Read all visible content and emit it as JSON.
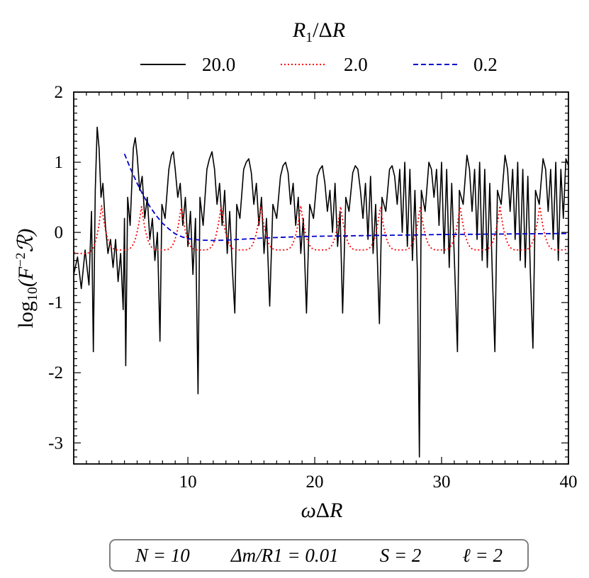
{
  "chart_data": {
    "type": "line",
    "title": "",
    "xlabel": "ωΔR",
    "ylabel": "log10(F⁻²ℛ)",
    "ylabel_parts": {
      "fn": "log",
      "sub": "10",
      "body": "(F",
      "sup": "−2",
      "end": "ℛ)"
    },
    "xlim": [
      1,
      40
    ],
    "ylim": [
      -3.3,
      2
    ],
    "xticks": [
      10,
      20,
      30,
      40
    ],
    "xtick_labels": [
      "10",
      "20",
      "30",
      "40"
    ],
    "yticks": [
      2,
      1,
      0,
      -1,
      -2,
      -3
    ],
    "ytick_labels": [
      "2",
      "1",
      "0",
      "-1",
      "-2",
      "-3"
    ],
    "legend": {
      "title": "R1/ΔR",
      "placement": "top-center",
      "entries": [
        "20.0",
        "2.0",
        "0.2"
      ]
    },
    "series": [
      {
        "name": "20.0",
        "color": "#000000",
        "style": "solid",
        "description": "rapidly oscillating, peaks near 1.0-1.5, deep troughs",
        "points": [
          [
            1.0,
            -0.6
          ],
          [
            1.3,
            -0.35
          ],
          [
            1.6,
            -0.8
          ],
          [
            1.9,
            -0.25
          ],
          [
            2.2,
            -0.75
          ],
          [
            2.4,
            0.3
          ],
          [
            2.55,
            -1.7
          ],
          [
            2.7,
            0.6
          ],
          [
            2.85,
            1.5
          ],
          [
            3.0,
            1.2
          ],
          [
            3.15,
            0.5
          ],
          [
            3.3,
            0.7
          ],
          [
            3.5,
            0.1
          ],
          [
            3.7,
            -0.3
          ],
          [
            3.9,
            -0.1
          ],
          [
            4.1,
            -0.5
          ],
          [
            4.3,
            -0.1
          ],
          [
            4.5,
            -0.7
          ],
          [
            4.7,
            -0.3
          ],
          [
            4.9,
            -1.1
          ],
          [
            5.0,
            0.2
          ],
          [
            5.1,
            -1.9
          ],
          [
            5.25,
            0.5
          ],
          [
            5.45,
            0.1
          ],
          [
            5.7,
            1.2
          ],
          [
            5.85,
            1.35
          ],
          [
            6.0,
            1.1
          ],
          [
            6.2,
            0.6
          ],
          [
            6.4,
            0.8
          ],
          [
            6.6,
            0.2
          ],
          [
            6.8,
            0.5
          ],
          [
            7.0,
            -0.1
          ],
          [
            7.2,
            0.2
          ],
          [
            7.4,
            -0.4
          ],
          [
            7.6,
            0.0
          ],
          [
            7.8,
            -1.55
          ],
          [
            7.95,
            0.4
          ],
          [
            8.2,
            0.2
          ],
          [
            8.5,
            0.9
          ],
          [
            8.7,
            1.1
          ],
          [
            8.85,
            1.15
          ],
          [
            9.0,
            0.9
          ],
          [
            9.2,
            0.5
          ],
          [
            9.4,
            0.7
          ],
          [
            9.6,
            0.1
          ],
          [
            9.8,
            0.5
          ],
          [
            10.0,
            -0.2
          ],
          [
            10.2,
            0.3
          ],
          [
            10.4,
            -0.6
          ],
          [
            10.6,
            0.2
          ],
          [
            10.8,
            -2.3
          ],
          [
            10.95,
            0.5
          ],
          [
            11.2,
            0.1
          ],
          [
            11.5,
            0.9
          ],
          [
            11.7,
            1.05
          ],
          [
            11.9,
            1.15
          ],
          [
            12.1,
            0.9
          ],
          [
            12.3,
            0.4
          ],
          [
            12.5,
            0.7
          ],
          [
            12.7,
            0.1
          ],
          [
            12.9,
            0.6
          ],
          [
            13.1,
            -0.3
          ],
          [
            13.3,
            0.3
          ],
          [
            13.5,
            -0.5
          ],
          [
            13.7,
            -1.15
          ],
          [
            13.85,
            0.4
          ],
          [
            14.1,
            0.2
          ],
          [
            14.4,
            0.9
          ],
          [
            14.6,
            1.0
          ],
          [
            14.8,
            1.05
          ],
          [
            15.0,
            0.85
          ],
          [
            15.2,
            0.4
          ],
          [
            15.4,
            0.7
          ],
          [
            15.6,
            0.1
          ],
          [
            15.8,
            0.5
          ],
          [
            16.0,
            -0.3
          ],
          [
            16.2,
            0.2
          ],
          [
            16.45,
            -1.05
          ],
          [
            16.7,
            0.4
          ],
          [
            17.0,
            0.2
          ],
          [
            17.3,
            0.8
          ],
          [
            17.5,
            0.95
          ],
          [
            17.7,
            1.0
          ],
          [
            17.9,
            0.85
          ],
          [
            18.1,
            0.4
          ],
          [
            18.3,
            0.7
          ],
          [
            18.5,
            0.1
          ],
          [
            18.7,
            0.5
          ],
          [
            18.9,
            -0.3
          ],
          [
            19.1,
            0.2
          ],
          [
            19.35,
            -1.15
          ],
          [
            19.6,
            0.4
          ],
          [
            19.9,
            0.2
          ],
          [
            20.2,
            0.8
          ],
          [
            20.4,
            0.9
          ],
          [
            20.6,
            0.95
          ],
          [
            20.8,
            0.7
          ],
          [
            21.0,
            0.3
          ],
          [
            21.2,
            0.6
          ],
          [
            21.4,
            0.0
          ],
          [
            21.6,
            0.7
          ],
          [
            21.8,
            -0.2
          ],
          [
            22.0,
            0.3
          ],
          [
            22.2,
            -1.15
          ],
          [
            22.45,
            0.5
          ],
          [
            22.7,
            0.3
          ],
          [
            23.0,
            0.85
          ],
          [
            23.2,
            0.95
          ],
          [
            23.4,
            0.9
          ],
          [
            23.6,
            0.6
          ],
          [
            23.8,
            0.2
          ],
          [
            24.0,
            0.7
          ],
          [
            24.2,
            -0.1
          ],
          [
            24.4,
            0.8
          ],
          [
            24.6,
            -0.3
          ],
          [
            24.8,
            0.4
          ],
          [
            25.1,
            -1.3
          ],
          [
            25.3,
            0.5
          ],
          [
            25.6,
            0.3
          ],
          [
            25.9,
            0.9
          ],
          [
            26.1,
            0.95
          ],
          [
            26.3,
            0.8
          ],
          [
            26.5,
            0.4
          ],
          [
            26.7,
            0.9
          ],
          [
            26.9,
            0.0
          ],
          [
            27.1,
            1.0
          ],
          [
            27.3,
            -0.2
          ],
          [
            27.5,
            0.9
          ],
          [
            27.7,
            -0.4
          ],
          [
            27.9,
            0.6
          ],
          [
            28.1,
            -0.6
          ],
          [
            28.25,
            -3.2
          ],
          [
            28.4,
            0.6
          ],
          [
            28.7,
            0.3
          ],
          [
            29.0,
            1.0
          ],
          [
            29.2,
            0.9
          ],
          [
            29.4,
            0.5
          ],
          [
            29.6,
            0.9
          ],
          [
            29.8,
            0.1
          ],
          [
            30.0,
            1.0
          ],
          [
            30.2,
            -0.3
          ],
          [
            30.4,
            0.9
          ],
          [
            30.6,
            -0.5
          ],
          [
            30.8,
            0.7
          ],
          [
            31.05,
            -0.6
          ],
          [
            31.25,
            -1.7
          ],
          [
            31.4,
            0.6
          ],
          [
            31.7,
            0.4
          ],
          [
            32.0,
            1.1
          ],
          [
            32.2,
            0.9
          ],
          [
            32.4,
            0.3
          ],
          [
            32.6,
            0.9
          ],
          [
            32.8,
            -0.1
          ],
          [
            33.0,
            1.0
          ],
          [
            33.2,
            -0.4
          ],
          [
            33.4,
            0.9
          ],
          [
            33.6,
            -0.5
          ],
          [
            33.8,
            0.7
          ],
          [
            34.0,
            -0.6
          ],
          [
            34.2,
            -1.7
          ],
          [
            34.4,
            0.6
          ],
          [
            34.7,
            0.4
          ],
          [
            35.0,
            1.1
          ],
          [
            35.2,
            0.9
          ],
          [
            35.4,
            0.3
          ],
          [
            35.6,
            0.9
          ],
          [
            35.8,
            -0.1
          ],
          [
            36.0,
            1.0
          ],
          [
            36.2,
            -0.4
          ],
          [
            36.4,
            0.9
          ],
          [
            36.6,
            -0.5
          ],
          [
            36.8,
            0.8
          ],
          [
            37.0,
            -0.6
          ],
          [
            37.2,
            -1.65
          ],
          [
            37.4,
            0.6
          ],
          [
            37.7,
            0.4
          ],
          [
            38.0,
            1.05
          ],
          [
            38.2,
            0.9
          ],
          [
            38.4,
            0.3
          ],
          [
            38.6,
            0.9
          ],
          [
            38.8,
            -0.1
          ],
          [
            39.0,
            1.0
          ],
          [
            39.2,
            -0.4
          ],
          [
            39.4,
            0.9
          ],
          [
            39.6,
            0.2
          ],
          [
            39.8,
            1.05
          ],
          [
            40.0,
            0.95
          ]
        ]
      },
      {
        "name": "2.0",
        "color": "#ff0000",
        "style": "dotted",
        "description": "periodic oscillation between about -0.3 and 0.38, period about 3.1",
        "generator": {
          "kind": "periodic",
          "start": 1.0,
          "end": 40.0,
          "period": 3.14,
          "phase_x": 3.2,
          "peak": 0.38,
          "trough": -0.25,
          "first_trough": -0.3
        }
      },
      {
        "name": "0.2",
        "color": "#0000cc",
        "style": "dashed",
        "description": "starts at 1.1 near x=5, decays to about -0.1 near x=12, slowly rises toward 0",
        "points": [
          [
            5.0,
            1.12
          ],
          [
            5.5,
            0.9
          ],
          [
            6.0,
            0.7
          ],
          [
            6.5,
            0.52
          ],
          [
            7.0,
            0.37
          ],
          [
            7.5,
            0.24
          ],
          [
            8.0,
            0.13
          ],
          [
            8.5,
            0.05
          ],
          [
            9.0,
            -0.02
          ],
          [
            9.5,
            -0.06
          ],
          [
            10.0,
            -0.09
          ],
          [
            11.0,
            -0.11
          ],
          [
            12.0,
            -0.115
          ],
          [
            13.0,
            -0.11
          ],
          [
            14.0,
            -0.1
          ],
          [
            16.0,
            -0.08
          ],
          [
            18.0,
            -0.065
          ],
          [
            20.0,
            -0.055
          ],
          [
            22.0,
            -0.05
          ],
          [
            24.0,
            -0.045
          ],
          [
            26.0,
            -0.04
          ],
          [
            28.0,
            -0.035
          ],
          [
            30.0,
            -0.03
          ],
          [
            32.0,
            -0.027
          ],
          [
            34.0,
            -0.024
          ],
          [
            36.0,
            -0.021
          ],
          [
            38.0,
            -0.018
          ],
          [
            40.0,
            -0.015
          ]
        ]
      }
    ]
  },
  "parameters": {
    "n": "N = 10",
    "dm": "Δm/R1 = 0.01",
    "s": "S = 2",
    "ell": "ℓ = 2"
  }
}
